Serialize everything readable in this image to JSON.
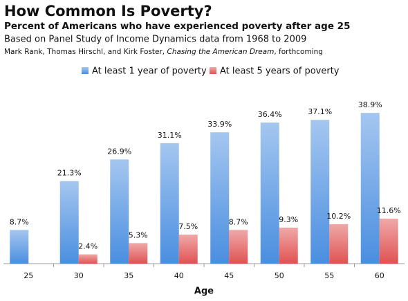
{
  "chart_data": {
    "type": "bar",
    "title": "How Common Is Poverty?",
    "subtitle": "Percent of Americans who have experienced poverty after age 25",
    "description": "Based on Panel Study of Income Dynamics data from 1968 to 2009",
    "source": [
      "Mark Rank, Thomas Hirschl, and Kirk Foster, ",
      "Chasing the American Dream",
      ", forthcoming"
    ],
    "x_label": "Age",
    "categories": [
      "25",
      "30",
      "35",
      "40",
      "45",
      "50",
      "55",
      "60"
    ],
    "series": [
      {
        "name": "At least 1 year of poverty",
        "color": "#4a8ee0",
        "values": [
          8.7,
          21.3,
          26.9,
          31.1,
          33.9,
          36.4,
          37.1,
          38.9
        ],
        "value_labels": [
          "8.7%",
          "21.3%",
          "26.9%",
          "31.1%",
          "33.9%",
          "36.4%",
          "37.1%",
          "38.9%"
        ]
      },
      {
        "name": "At least 5 years of poverty",
        "color": "#e05252",
        "values": [
          null,
          2.4,
          5.3,
          7.5,
          8.7,
          9.3,
          10.2,
          11.6
        ],
        "value_labels": [
          null,
          "2.4%",
          "5.3%",
          "7.5%",
          "8.7%",
          "9.3%",
          "10.2%",
          "11.6%"
        ]
      }
    ],
    "ylim": [
      0,
      40
    ],
    "legend": "top"
  }
}
